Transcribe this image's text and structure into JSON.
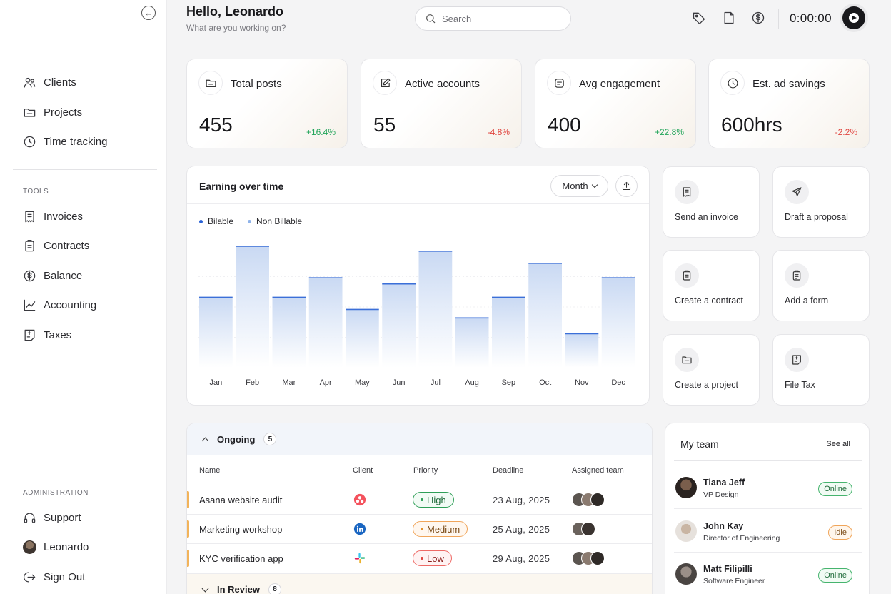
{
  "header": {
    "greeting": "Hello, Leonardo",
    "subtitle": "What are you working on?",
    "search_placeholder": "Search",
    "timer": "0:00:00"
  },
  "sidebar": {
    "main_items": [
      {
        "label": "Clients",
        "icon": "users-icon"
      },
      {
        "label": "Projects",
        "icon": "folder-icon"
      },
      {
        "label": "Time tracking",
        "icon": "clock-icon"
      }
    ],
    "tools_label": "TOOLS",
    "tools_items": [
      {
        "label": "Invoices",
        "icon": "receipt-icon"
      },
      {
        "label": "Contracts",
        "icon": "clipboard-icon"
      },
      {
        "label": "Balance",
        "icon": "dollar-icon"
      },
      {
        "label": "Accounting",
        "icon": "chart-line-icon"
      },
      {
        "label": "Taxes",
        "icon": "tax-icon"
      }
    ],
    "admin_label": "ADMINISTRATION",
    "admin_items": [
      {
        "label": "Support",
        "icon": "headset-icon"
      },
      {
        "label": "Leonardo",
        "icon": "avatar"
      },
      {
        "label": "Sign Out",
        "icon": "sign-out-icon"
      }
    ]
  },
  "stats": [
    {
      "label": "Total posts",
      "value": "455",
      "change": "+16.4%",
      "trend": "up",
      "icon": "folder-icon"
    },
    {
      "label": "Active accounts",
      "value": "55",
      "change": "-4.8%",
      "trend": "down",
      "icon": "edit-icon"
    },
    {
      "label": "Avg engagement",
      "value": "400",
      "change": "+22.8%",
      "trend": "up",
      "icon": "message-icon"
    },
    {
      "label": "Est. ad savings",
      "value": "600hrs",
      "change": "-2.2%",
      "trend": "down",
      "icon": "clock-icon"
    }
  ],
  "chart_card": {
    "title": "Earning over time",
    "period_label": "Month",
    "legend": [
      "Bilable",
      "Non Billable"
    ]
  },
  "chart_data": {
    "type": "bar",
    "categories": [
      "Jan",
      "Feb",
      "Mar",
      "Apr",
      "May",
      "Jun",
      "Jul",
      "Aug",
      "Sep",
      "Oct",
      "Nov",
      "Dec"
    ],
    "series": [
      {
        "name": "Bilable",
        "values": [
          58,
          100,
          58,
          74,
          48,
          69,
          96,
          41,
          58,
          86,
          28,
          74
        ]
      }
    ],
    "ylim": [
      0,
      100
    ],
    "grid": true,
    "legend_position": "top-left",
    "colors": {
      "bar_top": "#3b6fd8",
      "bar_fill": "#c9d9f3"
    }
  },
  "actions": [
    {
      "label": "Send an invoice",
      "icon": "receipt-icon"
    },
    {
      "label": "Draft a proposal",
      "icon": "send-icon"
    },
    {
      "label": "Create a contract",
      "icon": "clipboard-icon"
    },
    {
      "label": "Add a form",
      "icon": "form-icon"
    },
    {
      "label": "Create a project",
      "icon": "folder-icon"
    },
    {
      "label": "File Tax",
      "icon": "tax-icon"
    }
  ],
  "table": {
    "group": {
      "label": "Ongoing",
      "count": "5"
    },
    "group2": {
      "label": "In Review",
      "count": "8"
    },
    "columns": [
      "Name",
      "Client",
      "Priority",
      "Deadline",
      "Assigned team"
    ],
    "rows": [
      {
        "name": "Asana website audit",
        "client": "asana-logo-icon",
        "priority": "High",
        "deadline": "23 Aug, 2025"
      },
      {
        "name": "Marketing workshop",
        "client": "linkedin-logo-icon",
        "priority": "Medium",
        "deadline": "25 Aug, 2025"
      },
      {
        "name": "KYC verification app",
        "client": "slack-logo-icon",
        "priority": "Low",
        "deadline": "29 Aug, 2025"
      }
    ]
  },
  "team": {
    "title": "My team",
    "see_all": "See all",
    "members": [
      {
        "name": "Tiana Jeff",
        "role": "VP Design",
        "status": "Online"
      },
      {
        "name": "John Kay",
        "role": "Director of Engineering",
        "status": "Idle"
      },
      {
        "name": "Matt Filipilli",
        "role": "Software Engineer",
        "status": "Online"
      }
    ]
  },
  "colors": {
    "up": "#22a55a",
    "down": "#e0453f",
    "high": "#2e9e57",
    "medium": "#e0902e",
    "low": "#e0453f"
  }
}
